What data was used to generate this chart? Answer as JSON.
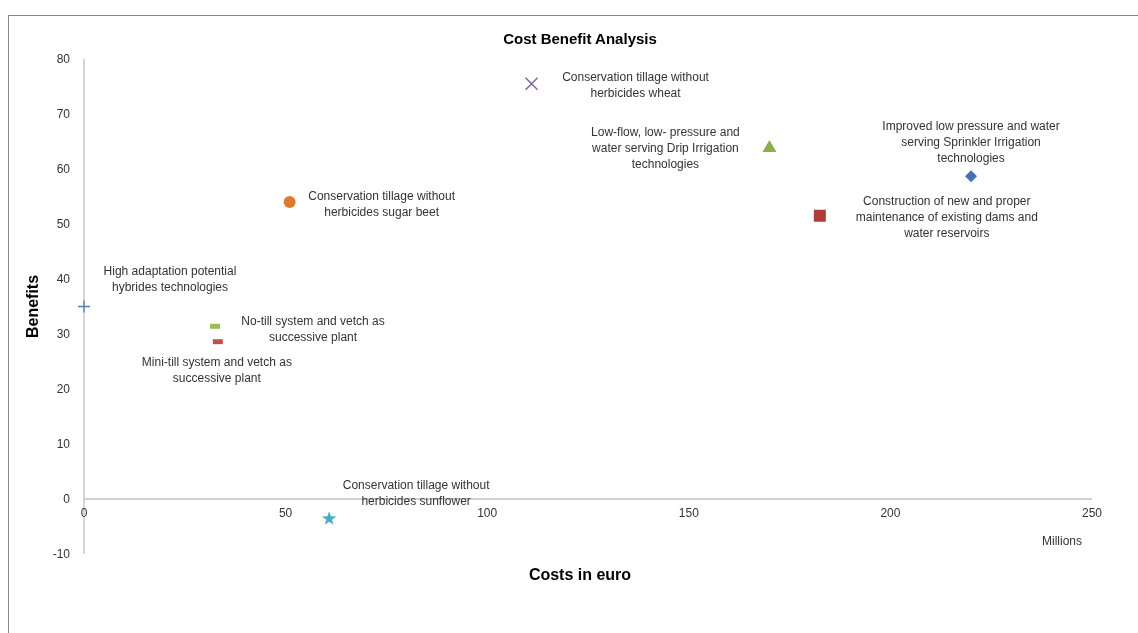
{
  "chart_data": {
    "type": "scatter",
    "title": "Cost Benefit Analysis",
    "xlabel": "Costs in euro",
    "ylabel": "Benefits",
    "annotations": [
      "Millions"
    ],
    "xlim": [
      0,
      250
    ],
    "xticks": [
      0,
      50,
      100,
      150,
      200,
      250
    ],
    "ylim": [
      -10,
      80
    ],
    "yticks": [
      -10,
      0,
      10,
      20,
      30,
      40,
      50,
      60,
      70,
      80
    ],
    "grid": false,
    "series": [
      {
        "name": "High adaptation potential hybrides technologies",
        "color": "#4f81bd",
        "marker": "plus",
        "x": [
          0
        ],
        "values": [
          35
        ]
      },
      {
        "name": "Conservation tillage without herbicides sugar beet",
        "color": "#e07b2e",
        "marker": "circle",
        "x": [
          51
        ],
        "values": [
          54
        ]
      },
      {
        "name": "Conservation tillage without herbicides wheat",
        "color": "#8064a2",
        "marker": "cross",
        "x": [
          111
        ],
        "values": [
          75.5
        ]
      },
      {
        "name": "Low-flow, low- pressure and water serving Drip Irrigation technologies",
        "color": "#8aae4c",
        "marker": "triangle",
        "x": [
          170
        ],
        "values": [
          64
        ]
      },
      {
        "name": "Improved low pressure and water serving Sprinkler Irrigation technologies",
        "color": "#4672b4",
        "marker": "diamond",
        "x": [
          220
        ],
        "values": [
          58.7
        ]
      },
      {
        "name": "Construction of new and proper maintenance of existing dams and water reservoirs",
        "color": "#b03c3a",
        "marker": "square",
        "x": [
          182.5
        ],
        "values": [
          51.5
        ]
      },
      {
        "name": "No-till system and vetch as successive plant",
        "color": "#9bbb59",
        "x": [
          32.5
        ],
        "values": [
          31.4
        ]
      },
      {
        "name": "Mini-till system and vetch as successive plant",
        "color": "#c0504d",
        "x": [
          33.2
        ],
        "values": [
          28.6
        ]
      },
      {
        "name": "Conservation tillage without herbicides sunflower",
        "color": "#4bacc6",
        "marker": "star",
        "x": [
          60.8
        ],
        "values": [
          -3.6
        ]
      }
    ]
  }
}
